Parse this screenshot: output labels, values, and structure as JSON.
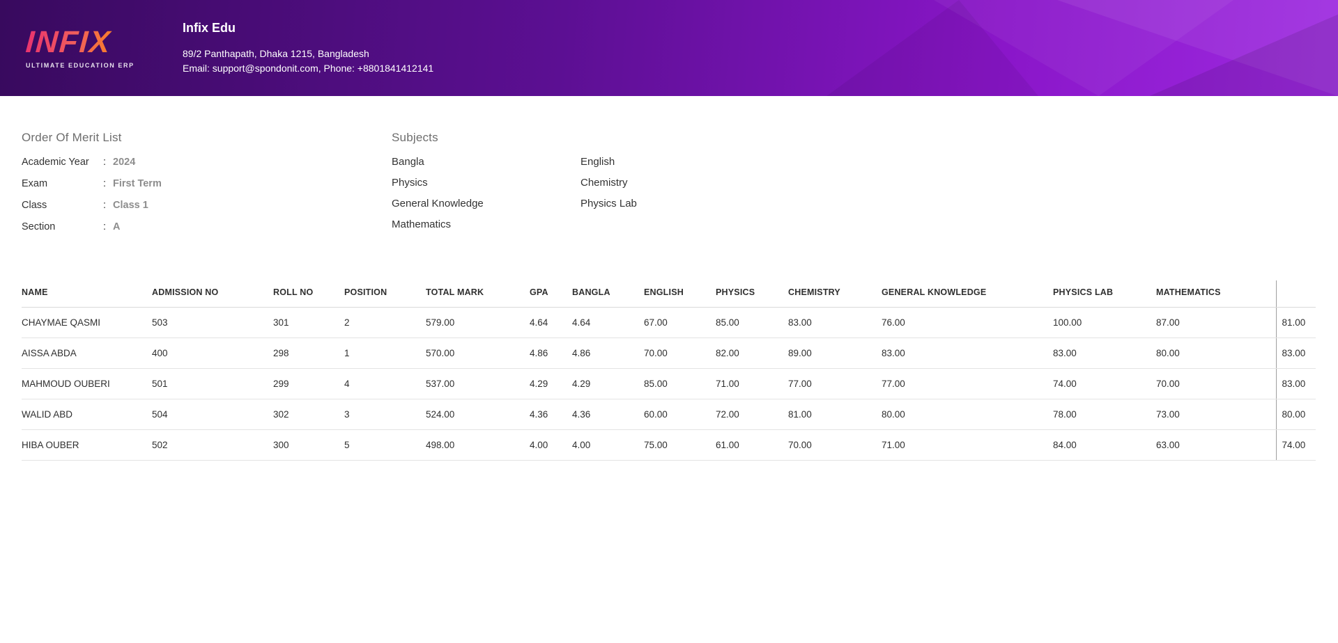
{
  "header": {
    "logo": {
      "brand": "INFIX",
      "tagline": "ULTIMATE EDUCATION ERP"
    },
    "school_name": "Infix Edu",
    "address": "89/2 Panthapath, Dhaka 1215, Bangladesh",
    "contact": "Email: support@spondonit.com, Phone: +8801841412141"
  },
  "merit_list": {
    "title": "Order Of Merit List",
    "fields": [
      {
        "label": "Academic Year",
        "separator": ":",
        "value": "2024"
      },
      {
        "label": "Exam",
        "separator": ":",
        "value": "First Term"
      },
      {
        "label": "Class",
        "separator": ":",
        "value": "Class 1"
      },
      {
        "label": "Section",
        "separator": ":",
        "value": "A"
      }
    ]
  },
  "subjects": {
    "title": "Subjects",
    "column1": [
      "Bangla",
      "Physics",
      "General Knowledge",
      "Mathematics"
    ],
    "column2": [
      "English",
      "Chemistry",
      "Physics Lab"
    ]
  },
  "table": {
    "headers": [
      "NAME",
      "ADMISSION NO",
      "ROLL NO",
      "POSITION",
      "TOTAL MARK",
      "GPA",
      "BANGLA",
      "ENGLISH",
      "PHYSICS",
      "CHEMISTRY",
      "GENERAL KNOWLEDGE",
      "PHYSICS LAB",
      "MATHEMATICS",
      ""
    ],
    "rows": [
      [
        "CHAYMAE QASMI",
        "503",
        "301",
        "2",
        "579.00",
        "4.64",
        "4.64",
        "67.00",
        "85.00",
        "83.00",
        "76.00",
        "100.00",
        "87.00",
        "81.00"
      ],
      [
        "AISSA ABDA",
        "400",
        "298",
        "1",
        "570.00",
        "4.86",
        "4.86",
        "70.00",
        "82.00",
        "89.00",
        "83.00",
        "83.00",
        "80.00",
        "83.00"
      ],
      [
        "MAHMOUD OUBERI",
        "501",
        "299",
        "4",
        "537.00",
        "4.29",
        "4.29",
        "85.00",
        "71.00",
        "77.00",
        "77.00",
        "74.00",
        "70.00",
        "83.00"
      ],
      [
        "WALID ABD",
        "504",
        "302",
        "3",
        "524.00",
        "4.36",
        "4.36",
        "60.00",
        "72.00",
        "81.00",
        "80.00",
        "78.00",
        "73.00",
        "80.00"
      ],
      [
        "HIBA OUBER",
        "502",
        "300",
        "5",
        "498.00",
        "4.00",
        "4.00",
        "75.00",
        "61.00",
        "70.00",
        "71.00",
        "84.00",
        "63.00",
        "74.00"
      ]
    ]
  },
  "colors": {
    "banner_gradient_start": "#380a5e",
    "banner_gradient_end": "#9d2ae0",
    "logo_gradient_start": "#e9336f",
    "logo_gradient_end": "#ff9800",
    "section_title": "#6e6e6e",
    "field_value": "#8d8d8d",
    "table_text": "#2f2f2f",
    "table_border": "#e3e3e3"
  }
}
